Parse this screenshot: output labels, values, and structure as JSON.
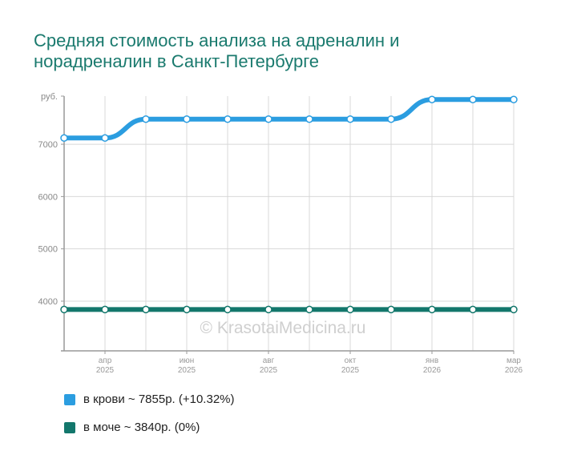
{
  "chart_data": {
    "type": "line",
    "title": "Средняя стоимость анализа на адреналин и норадреналин в Санкт-Петербурге",
    "ylabel": "руб.",
    "ylim": [
      3050,
      7920
    ],
    "yticks": [
      4000,
      5000,
      6000,
      7000
    ],
    "x_tick_labels": [
      {
        "index": 1,
        "month": "апр",
        "year": "2025"
      },
      {
        "index": 3,
        "month": "июн",
        "year": "2025"
      },
      {
        "index": 5,
        "month": "авг",
        "year": "2025"
      },
      {
        "index": 7,
        "month": "окт",
        "year": "2025"
      },
      {
        "index": 9,
        "month": "янв",
        "year": "2026"
      },
      {
        "index": 11,
        "month": "мар",
        "year": "2026"
      }
    ],
    "grid": true,
    "watermark": "© KrasotaiMedicina.ru",
    "series": [
      {
        "name": "в крови",
        "legend": "в крови ~ 7855р. (+10.32%)",
        "color": "#2b9de0",
        "values": [
          7120,
          7120,
          7480,
          7480,
          7480,
          7480,
          7480,
          7480,
          7480,
          7855,
          7855,
          7855
        ]
      },
      {
        "name": "в моче",
        "legend": "в моче ~ 3840р. (0%)",
        "color": "#13776c",
        "values": [
          3840,
          3840,
          3840,
          3840,
          3840,
          3840,
          3840,
          3840,
          3840,
          3840,
          3840,
          3840
        ]
      }
    ]
  }
}
